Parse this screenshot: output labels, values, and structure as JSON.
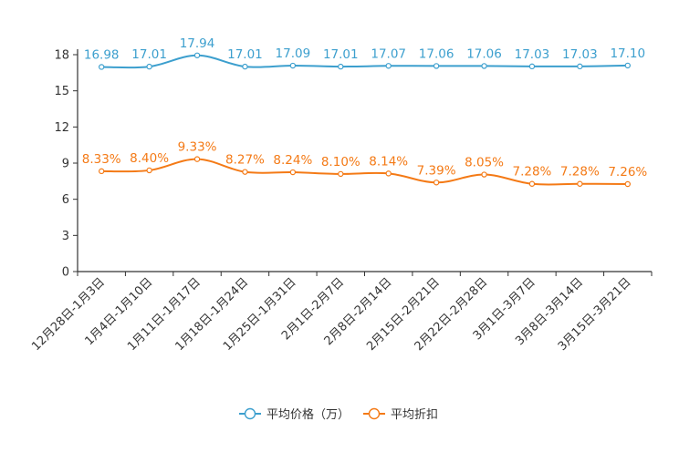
{
  "chart_data": {
    "type": "line",
    "categories": [
      "12月28日-1月3日",
      "1月4日-1月10日",
      "1月11日-1月17日",
      "1月18日-1月24日",
      "1月25日-1月31日",
      "2月1日-2月7日",
      "2月8日-2月14日",
      "2月15日-2月21日",
      "2月22日-2月28日",
      "3月1日-3月7日",
      "3月8日-3月14日",
      "3月15日-3月21日"
    ],
    "y_ticks": [
      0,
      3,
      6,
      9,
      12,
      15,
      18
    ],
    "ylim": [
      0,
      18
    ],
    "series": [
      {
        "name": "平均价格（万）",
        "color": "#3c9fce",
        "values": [
          16.98,
          17.01,
          17.94,
          17.01,
          17.09,
          17.01,
          17.07,
          17.06,
          17.06,
          17.03,
          17.03,
          17.1
        ],
        "labels": [
          "16.98",
          "17.01",
          "17.94",
          "17.01",
          "17.09",
          "17.01",
          "17.07",
          "17.06",
          "17.06",
          "17.03",
          "17.03",
          "17.10"
        ]
      },
      {
        "name": "平均折扣",
        "color": "#f47a16",
        "values": [
          8.33,
          8.4,
          9.33,
          8.27,
          8.24,
          8.1,
          8.14,
          7.39,
          8.05,
          7.28,
          7.28,
          7.26
        ],
        "labels": [
          "8.33%",
          "8.40%",
          "9.33%",
          "8.27%",
          "8.24%",
          "8.10%",
          "8.14%",
          "7.39%",
          "8.05%",
          "7.28%",
          "7.28%",
          "7.26%"
        ]
      }
    ],
    "title": "",
    "xlabel": "",
    "ylabel": "",
    "legend_position": "bottom"
  }
}
